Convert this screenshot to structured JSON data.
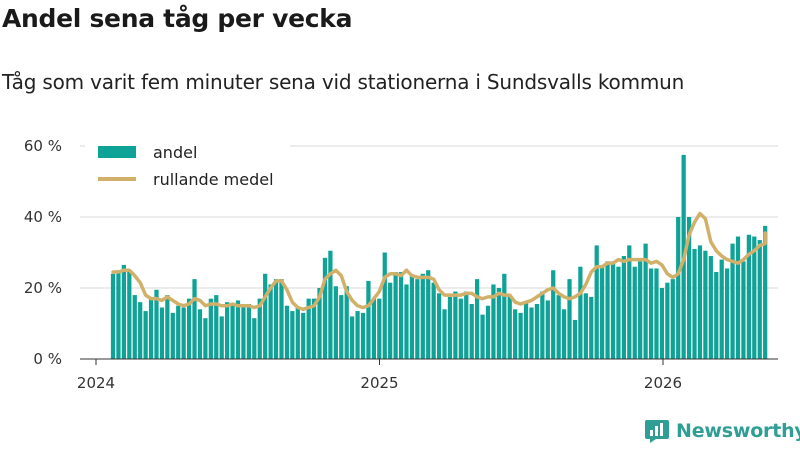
{
  "header": {
    "title": "Andel sena tåg per vecka",
    "subtitle": "Tåg som varit fem minuter sena vid stationerna i Sundsvalls kommun"
  },
  "brand": {
    "name": "Newsworthy"
  },
  "colors": {
    "bar": "#0fa398",
    "line": "#d1b06a",
    "grid": "#d9d9d9",
    "axis": "#333333",
    "brand": "#2f9e94"
  },
  "chart_data": {
    "type": "bar",
    "title": "Andel sena tåg per vecka",
    "subtitle": "Tåg som varit fem minuter sena vid stationerna i Sundsvalls kommun",
    "xlabel": "",
    "ylabel": "",
    "x_start": 2024.0,
    "x_end": 2026.42,
    "xlim": [
      2023.98,
      2026.42
    ],
    "ylim": [
      0,
      60
    ],
    "y_ticks": [
      0,
      20,
      40,
      60
    ],
    "y_tick_labels": [
      "0 %",
      "20 %",
      "40 %",
      "60 %"
    ],
    "x_ticks": [
      2024,
      2025,
      2026
    ],
    "x_tick_labels": [
      "2024",
      "2025",
      "2026"
    ],
    "legend": {
      "position": "top-left",
      "entries": [
        "andel",
        "rullande medel"
      ]
    },
    "grid": true,
    "series": [
      {
        "name": "andel",
        "type": "bar",
        "x_start": 2024.06,
        "week_step": 0.01917,
        "values": [
          24,
          25,
          26.5,
          25,
          18,
          16,
          13.5,
          17,
          19.5,
          14.5,
          18,
          13,
          15,
          14.5,
          17,
          22.5,
          14,
          11.5,
          17,
          18,
          12,
          16,
          15.5,
          16.5,
          14.5,
          15.5,
          11.5,
          17,
          24,
          21,
          22.5,
          22.5,
          15,
          13.5,
          14.5,
          13,
          17,
          17,
          20,
          28.5,
          30.5,
          20.5,
          18,
          20.5,
          12,
          13.5,
          13,
          22,
          17,
          17,
          30,
          21.5,
          24.5,
          24.5,
          21,
          23.5,
          22.5,
          24,
          25,
          21.5,
          18.5,
          14,
          17.5,
          19,
          17,
          19,
          15.5,
          22.5,
          12.5,
          15,
          21,
          20,
          24,
          18,
          14,
          13,
          16,
          14.5,
          15.5,
          19,
          16.5,
          25,
          18,
          14,
          22.5,
          11,
          26,
          18.5,
          17.5,
          32,
          26,
          27.5,
          27.5,
          26,
          29,
          32,
          26,
          27.5,
          32.5,
          25.5,
          25.5,
          20,
          21.5,
          22.5,
          40,
          57.5,
          40,
          31,
          32,
          30.5,
          29,
          24.5,
          28,
          25.5,
          32.5,
          34.5,
          27.5,
          35,
          34.5,
          33.5,
          37.5
        ]
      },
      {
        "name": "rullande medel",
        "type": "line",
        "values": [
          24.5,
          24.5,
          25,
          25,
          23.5,
          21.5,
          18,
          17,
          17,
          16.5,
          17.5,
          16.5,
          15.5,
          15,
          15.5,
          17,
          16.5,
          15,
          15.5,
          15.5,
          15,
          15,
          15.5,
          15,
          15,
          15,
          14.5,
          15,
          17.5,
          20,
          22,
          22,
          19.5,
          16,
          14.5,
          14,
          14.5,
          15,
          17.5,
          22.5,
          24,
          25,
          23.5,
          19,
          16.5,
          15,
          14.5,
          15,
          17,
          19,
          23,
          24,
          24,
          23.5,
          25,
          23.5,
          23,
          23,
          23,
          22.5,
          19.5,
          18,
          18,
          18,
          18,
          18.5,
          18.5,
          17.5,
          17,
          17.5,
          17.5,
          18.5,
          18,
          18,
          16,
          15.5,
          16,
          16.5,
          17.5,
          18.5,
          19.5,
          20,
          18.5,
          17.5,
          17,
          17.5,
          18.5,
          21,
          24.5,
          26,
          26,
          27,
          27,
          28,
          27.5,
          28,
          28,
          28,
          28,
          27,
          27.5,
          26.5,
          24,
          23,
          24,
          28,
          35,
          38.5,
          41,
          39.5,
          33,
          30.5,
          29,
          28,
          27.5,
          27,
          28,
          29.5,
          30.5,
          32,
          32.5,
          33.5,
          35.5
        ]
      }
    ]
  }
}
